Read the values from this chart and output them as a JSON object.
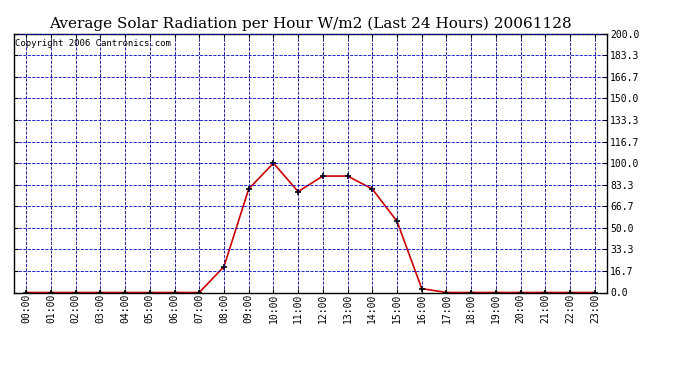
{
  "title": "Average Solar Radiation per Hour W/m2 (Last 24 Hours) 20061128",
  "copyright": "Copyright 2006 Cantronics.com",
  "x_labels": [
    "00:00",
    "01:00",
    "02:00",
    "03:00",
    "04:00",
    "05:00",
    "06:00",
    "07:00",
    "08:00",
    "09:00",
    "10:00",
    "11:00",
    "12:00",
    "13:00",
    "14:00",
    "15:00",
    "16:00",
    "17:00",
    "18:00",
    "19:00",
    "20:00",
    "21:00",
    "22:00",
    "23:00"
  ],
  "y_values": [
    0.0,
    0.0,
    0.0,
    0.0,
    0.0,
    0.0,
    0.0,
    0.0,
    20.0,
    80.0,
    100.0,
    78.0,
    90.0,
    90.0,
    80.0,
    55.0,
    3.0,
    0.0,
    0.0,
    0.0,
    0.0,
    0.0,
    0.0,
    0.0
  ],
  "ylim": [
    0.0,
    200.0
  ],
  "yticks": [
    0.0,
    16.7,
    33.3,
    50.0,
    66.7,
    83.3,
    100.0,
    116.7,
    133.3,
    150.0,
    166.7,
    183.3,
    200.0
  ],
  "ytick_labels": [
    "0.0",
    "16.7",
    "33.3",
    "50.0",
    "66.7",
    "83.3",
    "100.0",
    "116.7",
    "133.3",
    "150.0",
    "166.7",
    "183.3",
    "200.0"
  ],
  "line_color": "#cc0000",
  "marker_color": "#000000",
  "bg_color": "#ffffff",
  "plot_bg_color": "#ffffff",
  "grid_h_color": "#0000cc",
  "grid_v_color": "#000080",
  "title_fontsize": 11,
  "copyright_fontsize": 6.5,
  "tick_fontsize": 7,
  "border_color": "#000000"
}
